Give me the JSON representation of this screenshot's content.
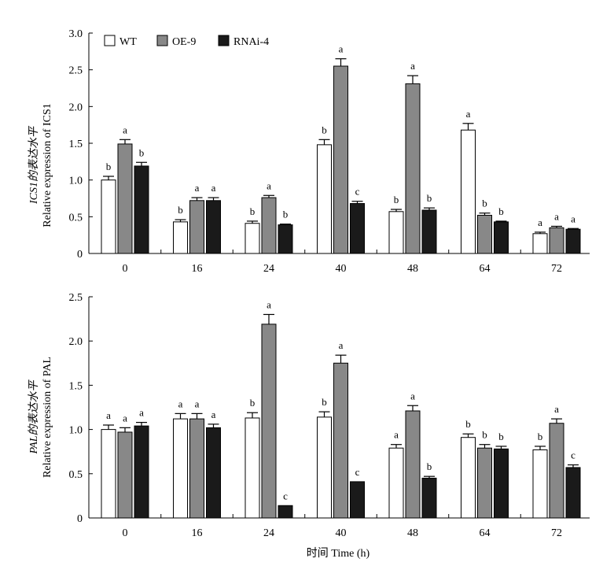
{
  "colors": {
    "WT": "#ffffff",
    "OE-9": "#888888",
    "RNAi-4": "#1a1a1a",
    "stroke": "#000000"
  },
  "legend": [
    "WT",
    "OE-9",
    "RNAi-4"
  ],
  "xlabel": "时间 Time (h)",
  "chart_data": [
    {
      "type": "bar",
      "gene": "ICS1",
      "ylabel_cn": "ICS1的表达水平",
      "ylabel_en": "Relative expression of ICS1",
      "ylim": [
        0,
        3.0
      ],
      "yticks": [
        "0",
        "0.5",
        "1.0",
        "1.5",
        "2.0",
        "2.5",
        "3.0"
      ],
      "categories": [
        "0",
        "16",
        "24",
        "40",
        "48",
        "64",
        "72"
      ],
      "series": [
        {
          "name": "WT",
          "values": [
            1.0,
            0.43,
            0.41,
            1.48,
            0.57,
            1.68,
            0.27
          ],
          "errors": [
            0.05,
            0.03,
            0.03,
            0.07,
            0.03,
            0.09,
            0.02
          ],
          "labels": [
            "b",
            "b",
            "b",
            "b",
            "b",
            "a",
            "a"
          ]
        },
        {
          "name": "OE-9",
          "values": [
            1.49,
            0.72,
            0.76,
            2.55,
            2.31,
            0.52,
            0.35
          ],
          "errors": [
            0.06,
            0.04,
            0.03,
            0.1,
            0.11,
            0.03,
            0.02
          ],
          "labels": [
            "a",
            "a",
            "a",
            "a",
            "a",
            "b",
            "a"
          ]
        },
        {
          "name": "RNAi-4",
          "values": [
            1.19,
            0.72,
            0.39,
            0.68,
            0.59,
            0.43,
            0.33
          ],
          "errors": [
            0.05,
            0.04,
            0.01,
            0.03,
            0.03,
            0.01,
            0.01
          ],
          "labels": [
            "b",
            "a",
            "b",
            "c",
            "b",
            "b",
            "a"
          ]
        }
      ]
    },
    {
      "type": "bar",
      "gene": "PAL",
      "ylabel_cn": "PAL的表达水平",
      "ylabel_en": "Relative expression of PAL",
      "ylim": [
        0,
        2.5
      ],
      "yticks": [
        "0",
        "0.5",
        "1.0",
        "1.5",
        "2.0",
        "2.5"
      ],
      "categories": [
        "0",
        "16",
        "24",
        "40",
        "48",
        "64",
        "72"
      ],
      "series": [
        {
          "name": "WT",
          "values": [
            1.0,
            1.12,
            1.13,
            1.14,
            0.79,
            0.91,
            0.77
          ],
          "errors": [
            0.05,
            0.06,
            0.06,
            0.06,
            0.04,
            0.04,
            0.04
          ],
          "labels": [
            "a",
            "a",
            "b",
            "b",
            "a",
            "b",
            "b"
          ]
        },
        {
          "name": "OE-9",
          "values": [
            0.97,
            1.12,
            2.19,
            1.75,
            1.21,
            0.79,
            1.07
          ],
          "errors": [
            0.05,
            0.06,
            0.11,
            0.09,
            0.06,
            0.04,
            0.05
          ],
          "labels": [
            "a",
            "a",
            "a",
            "a",
            "a",
            "b",
            "a"
          ]
        },
        {
          "name": "RNAi-4",
          "values": [
            1.04,
            1.02,
            0.14,
            0.41,
            0.45,
            0.78,
            0.57
          ],
          "errors": [
            0.04,
            0.04,
            0.0,
            0.0,
            0.02,
            0.03,
            0.03
          ],
          "labels": [
            "a",
            "a",
            "c",
            "c",
            "b",
            "b",
            "c"
          ]
        }
      ]
    }
  ]
}
